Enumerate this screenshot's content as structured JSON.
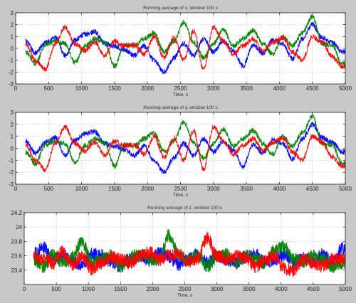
{
  "chart_data": [
    {
      "type": "line",
      "title": "Running average of x, window 100 s",
      "xlabel": "Time, s",
      "ylabel": "",
      "xlim": [
        0,
        5000
      ],
      "ylim": [
        -3,
        3
      ],
      "xticks": [
        "0",
        "500",
        "1000",
        "1500",
        "2000",
        "2500",
        "3000",
        "3500",
        "4000",
        "4500",
        "5000"
      ],
      "yticks": [
        "-3",
        "-2",
        "-1",
        "0",
        "1",
        "2",
        "3"
      ],
      "grid": true,
      "x": [
        150,
        300,
        450,
        600,
        750,
        900,
        1050,
        1200,
        1350,
        1500,
        1650,
        1800,
        1950,
        2100,
        2250,
        2400,
        2550,
        2700,
        2850,
        3000,
        3150,
        3300,
        3450,
        3600,
        3750,
        3900,
        4050,
        4200,
        4350,
        4500,
        4650,
        4800,
        4950
      ],
      "series": [
        {
          "color": "#0000ff",
          "values": [
            0.6,
            -0.4,
            0.5,
            0.9,
            -0.6,
            0.7,
            1.2,
            1.4,
            0.4,
            0.2,
            -0.1,
            -0.6,
            0.2,
            -1.0,
            -2.0,
            -0.8,
            0.4,
            -0.6,
            0.8,
            -0.3,
            0.6,
            -0.2,
            -1.5,
            0.3,
            -0.4,
            0.7,
            0.4,
            -0.9,
            0.8,
            2.0,
            0.9,
            0.5,
            -0.3
          ]
        },
        {
          "color": "#008000",
          "values": [
            -0.3,
            -1.3,
            0.3,
            0.6,
            0.4,
            -1.2,
            0.2,
            0.8,
            0.5,
            -1.5,
            0.3,
            0.2,
            0.8,
            1.3,
            -0.3,
            0.6,
            2.2,
            0.5,
            -0.8,
            0.4,
            1.6,
            0.2,
            0.8,
            1.5,
            0.4,
            -0.5,
            1.0,
            0.2,
            1.3,
            2.7,
            0.4,
            0.3,
            -1.3
          ]
        },
        {
          "color": "#ff0000",
          "values": [
            0.3,
            -1.0,
            -1.8,
            0.4,
            1.8,
            0.4,
            -0.2,
            0.5,
            -0.6,
            0.6,
            0.2,
            0.3,
            -0.5,
            1.0,
            -0.8,
            0.9,
            -1.0,
            1.5,
            -1.8,
            1.8,
            0.6,
            -0.5,
            0.2,
            0.8,
            -0.2,
            0.5,
            0.9,
            -0.3,
            -1.0,
            1.0,
            0.5,
            -0.7,
            -1.5
          ]
        }
      ]
    },
    {
      "type": "line",
      "title": "Running average of y, window 100 s",
      "xlabel": "Time, s",
      "ylabel": "",
      "xlim": [
        0,
        5000
      ],
      "ylim": [
        -3,
        3
      ],
      "xticks": [
        "0",
        "500",
        "1000",
        "1500",
        "2000",
        "2500",
        "3000",
        "3500",
        "4000",
        "4500",
        "5000"
      ],
      "yticks": [
        "-3",
        "-2",
        "-1",
        "0",
        "1",
        "2",
        "3"
      ],
      "grid": true,
      "x": [
        150,
        300,
        450,
        600,
        750,
        900,
        1050,
        1200,
        1350,
        1500,
        1650,
        1800,
        1950,
        2100,
        2250,
        2400,
        2550,
        2700,
        2850,
        3000,
        3150,
        3300,
        3450,
        3600,
        3750,
        3900,
        4050,
        4200,
        4350,
        4500,
        4650,
        4800,
        4950
      ],
      "series": [
        {
          "color": "#0000ff",
          "values": [
            0.6,
            -0.4,
            0.5,
            0.9,
            -0.6,
            0.7,
            1.2,
            1.4,
            0.4,
            0.2,
            -0.1,
            -0.6,
            0.2,
            -1.0,
            -2.0,
            -0.8,
            0.4,
            -0.6,
            0.8,
            -0.3,
            0.6,
            -0.2,
            -1.5,
            0.3,
            -0.4,
            0.7,
            0.4,
            -0.9,
            0.8,
            2.0,
            0.9,
            0.5,
            -0.3
          ]
        },
        {
          "color": "#008000",
          "values": [
            -0.3,
            -1.3,
            0.3,
            0.6,
            0.4,
            -1.2,
            0.2,
            0.8,
            0.5,
            -1.5,
            0.3,
            0.2,
            0.8,
            1.3,
            -0.3,
            0.6,
            2.2,
            0.5,
            -0.8,
            0.4,
            1.6,
            0.2,
            0.8,
            1.5,
            0.4,
            -0.5,
            1.0,
            0.2,
            1.3,
            2.7,
            0.4,
            0.3,
            -1.3
          ]
        },
        {
          "color": "#ff0000",
          "values": [
            0.3,
            -1.0,
            -1.8,
            0.4,
            1.8,
            0.4,
            -0.2,
            0.5,
            -0.6,
            0.6,
            0.2,
            0.3,
            -0.5,
            1.0,
            -0.8,
            0.9,
            -1.0,
            1.5,
            -1.8,
            1.8,
            0.6,
            -0.5,
            0.2,
            0.8,
            -0.2,
            0.5,
            0.9,
            -0.3,
            -1.0,
            1.0,
            0.5,
            -0.7,
            -1.5
          ]
        }
      ]
    },
    {
      "type": "line",
      "title": "Running average of z, window 100 s",
      "xlabel": "Time, s",
      "ylabel": "",
      "xlim": [
        0,
        5000
      ],
      "ylim": [
        23.2,
        24.2
      ],
      "xticks": [
        "0",
        "500",
        "1000",
        "1500",
        "2000",
        "2500",
        "3000",
        "3500",
        "4000",
        "4500",
        "5000"
      ],
      "yticks": [
        "23.4",
        "23.6",
        "23.8",
        "24",
        "24.2"
      ],
      "grid": true,
      "x": [
        150,
        300,
        450,
        600,
        750,
        900,
        1050,
        1200,
        1350,
        1500,
        1650,
        1800,
        1950,
        2100,
        2250,
        2400,
        2550,
        2700,
        2850,
        3000,
        3150,
        3300,
        3450,
        3600,
        3750,
        3900,
        4050,
        4200,
        4350,
        4500,
        4650,
        4800,
        4950
      ],
      "series": [
        {
          "color": "#0000ff",
          "values": [
            23.62,
            23.72,
            23.55,
            23.6,
            23.52,
            23.48,
            23.62,
            23.6,
            23.52,
            23.45,
            23.55,
            23.6,
            23.52,
            23.64,
            23.58,
            23.48,
            23.55,
            23.62,
            23.5,
            23.6,
            23.55,
            23.52,
            23.58,
            23.62,
            23.5,
            23.55,
            23.62,
            23.5,
            23.58,
            23.52,
            23.62,
            23.5,
            23.7
          ]
        },
        {
          "color": "#008000",
          "values": [
            23.55,
            23.45,
            23.62,
            23.5,
            23.58,
            23.8,
            23.5,
            23.55,
            23.6,
            23.45,
            23.58,
            23.62,
            23.55,
            23.55,
            23.88,
            23.62,
            23.55,
            23.6,
            23.45,
            23.58,
            23.62,
            23.5,
            23.6,
            23.55,
            23.5,
            23.68,
            23.72,
            23.55,
            23.52,
            23.6,
            23.55,
            23.45,
            23.5
          ]
        },
        {
          "color": "#ff0000",
          "values": [
            23.6,
            23.55,
            23.5,
            23.65,
            23.48,
            23.6,
            23.42,
            23.5,
            23.58,
            23.55,
            23.5,
            23.6,
            23.65,
            23.55,
            23.6,
            23.62,
            23.52,
            23.55,
            23.85,
            23.6,
            23.55,
            23.6,
            23.58,
            23.45,
            23.55,
            23.6,
            23.42,
            23.4,
            23.55,
            23.5,
            23.45,
            23.55,
            23.55
          ]
        }
      ]
    }
  ]
}
